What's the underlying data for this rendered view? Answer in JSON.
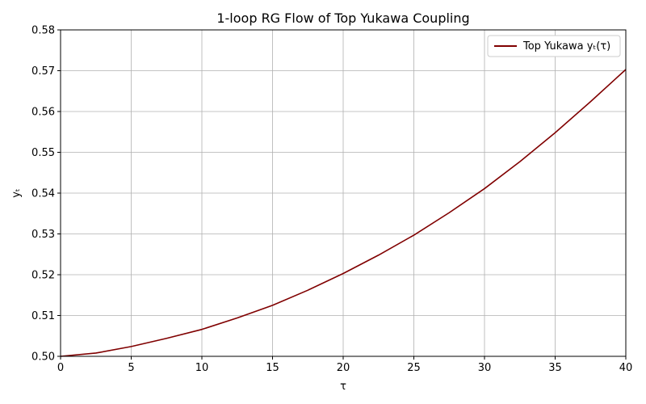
{
  "chart_data": {
    "type": "line",
    "title": "1-loop RG Flow of Top Yukawa Coupling",
    "xlabel": "τ",
    "ylabel": "yₜ",
    "xlim": [
      0,
      40
    ],
    "ylim": [
      0.5,
      0.58
    ],
    "x_ticks": [
      "0",
      "5",
      "10",
      "15",
      "20",
      "25",
      "30",
      "35",
      "40"
    ],
    "y_ticks": [
      "0.50",
      "0.51",
      "0.52",
      "0.53",
      "0.54",
      "0.55",
      "0.56",
      "0.57",
      "0.58"
    ],
    "grid": true,
    "legend_position": "top-right",
    "colors": {
      "line": "#800000",
      "grid": "#b0b0b0"
    },
    "series": [
      {
        "name": "Top Yukawa yₜ(τ)",
        "x": [
          0,
          2.5,
          5,
          7.5,
          10,
          12.5,
          15,
          17.5,
          20,
          22.5,
          25,
          27.5,
          30,
          32.5,
          35,
          37.5,
          40
        ],
        "y": [
          0.5,
          0.5008,
          0.5024,
          0.5044,
          0.5066,
          0.5094,
          0.5125,
          0.5162,
          0.5203,
          0.5248,
          0.5297,
          0.5352,
          0.5411,
          0.5477,
          0.5548,
          0.5624,
          0.5703
        ]
      }
    ]
  }
}
